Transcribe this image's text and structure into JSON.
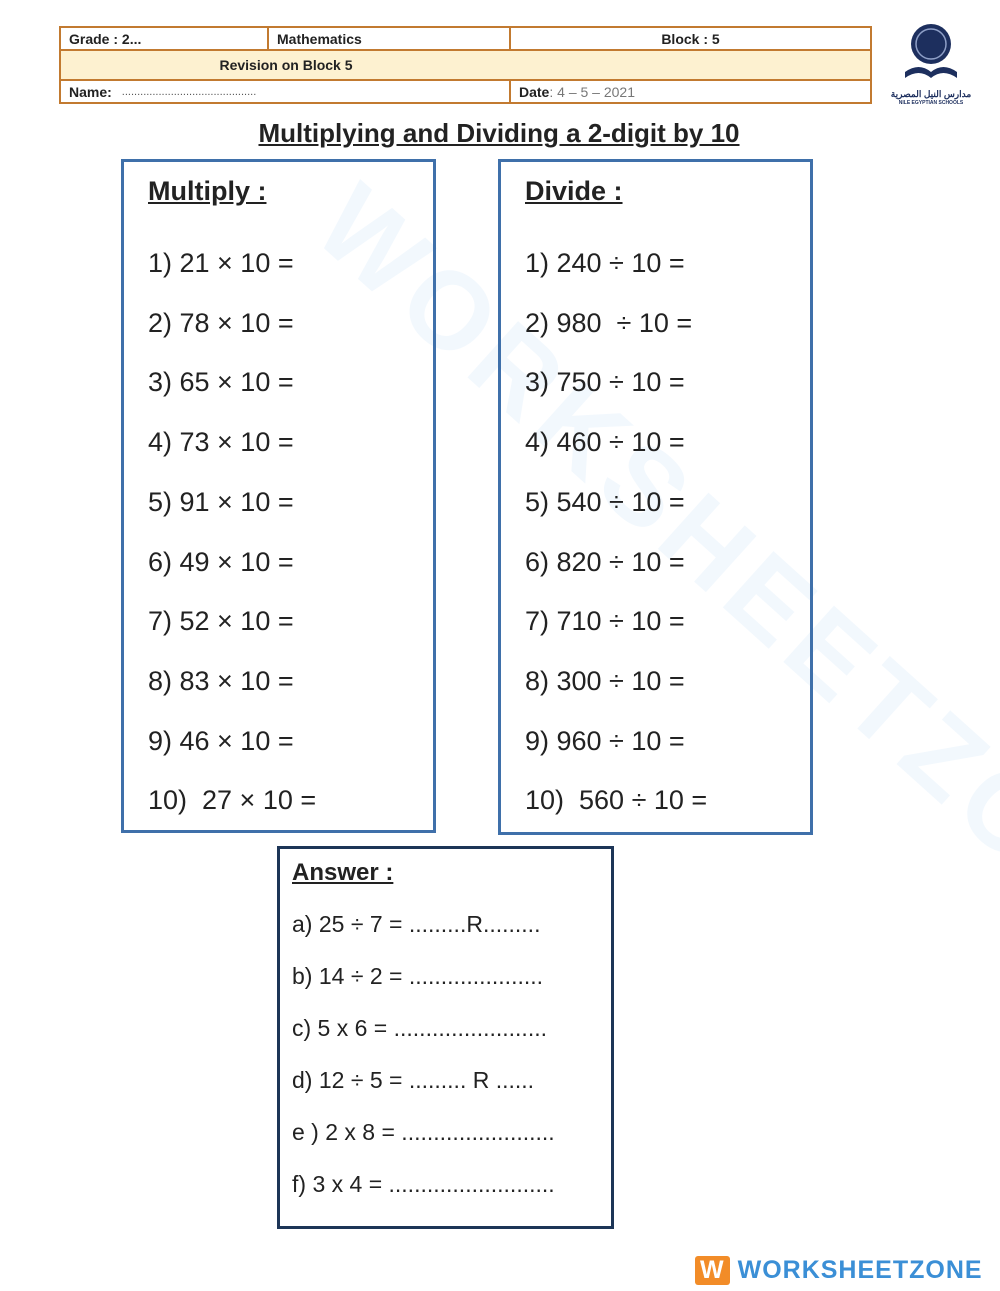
{
  "header": {
    "grade": "Grade : 2...",
    "subject": "Mathematics",
    "block": "Block : 5",
    "revision": "Revision on Block 5",
    "name_label": "Name:",
    "name_dots": "............................................",
    "date_label": "Date",
    "date_value": " : 4 – 5 – 2021"
  },
  "school_logo": {
    "arabic": "مدارس النيل المصرية",
    "english": "NILE EGYPTIAN SCHOOLS"
  },
  "title": "Multiplying and Dividing a 2-digit by 10",
  "multiply": {
    "heading": "Multiply :",
    "items": [
      "1) 21 × 10 =",
      "2) 78 × 10 =",
      "3) 65 × 10 =",
      "4) 73 × 10 =",
      "5) 91 × 10 =",
      "6) 49 × 10 =",
      "7) 52 × 10 =",
      "8) 83 × 10 =",
      "9) 46 × 10 =",
      "10)  27 × 10 ="
    ]
  },
  "divide": {
    "heading": "Divide :",
    "items": [
      "1) 240 ÷ 10 =",
      "2) 980  ÷ 10 =",
      "3) 750 ÷ 10 =",
      "4) 460 ÷ 10 =",
      "5) 540 ÷ 10 =",
      "6) 820 ÷ 10 =",
      "7) 710 ÷ 10 =",
      "8) 300 ÷ 10 =",
      "9) 960 ÷ 10 =",
      "10)  560 ÷ 10 ="
    ]
  },
  "answer": {
    "heading": "Answer :",
    "items": [
      "a) 25 ÷ 7 = .........R.........",
      "b) 14 ÷ 2 = .....................",
      "c) 5 x 6 = ........................",
      "d) 12 ÷ 5 = ......... R ......",
      "e ) 2 x 8 = ........................",
      "f) 3 x 4 = .........................."
    ]
  },
  "watermark": {
    "logo_letter": "W",
    "text": "WORKSHEETZONE"
  },
  "colors": {
    "header_border": "#c27a30",
    "header_fill": "#fdf1d0",
    "box_border": "#3f70aa",
    "answer_border": "#1d3557",
    "brand": "#3b8fd6"
  }
}
